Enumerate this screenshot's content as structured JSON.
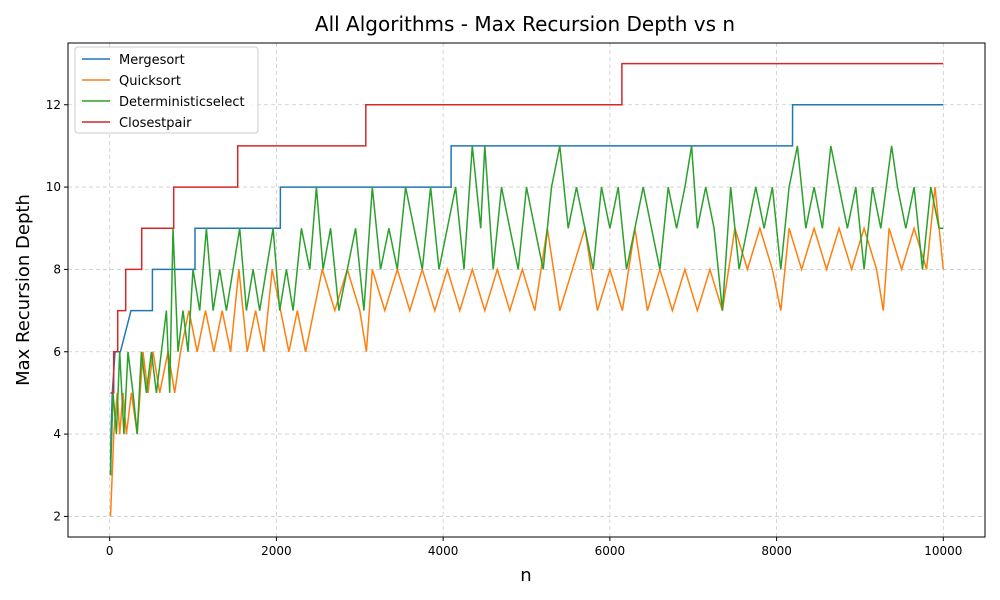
{
  "chart_data": {
    "type": "line",
    "title": "All Algorithms - Max Recursion Depth vs n",
    "xlabel": "n",
    "ylabel": "Max Recursion Depth",
    "xlim": [
      -500,
      10500
    ],
    "ylim": [
      1.5,
      13.5
    ],
    "xticks": [
      0,
      2000,
      4000,
      6000,
      8000,
      10000
    ],
    "yticks": [
      2,
      4,
      6,
      8,
      10,
      12
    ],
    "grid": true,
    "legend_position": "top-left",
    "series": [
      {
        "name": "Mergesort",
        "color": "#1f77b4",
        "points": [
          [
            10,
            3
          ],
          [
            16,
            4
          ],
          [
            32,
            5
          ],
          [
            64,
            6
          ],
          [
            128,
            6
          ],
          [
            256,
            7
          ],
          [
            512,
            7
          ],
          [
            513,
            8
          ],
          [
            1023,
            8
          ],
          [
            1024,
            9
          ],
          [
            2047,
            9
          ],
          [
            2048,
            10
          ],
          [
            4095,
            10
          ],
          [
            4096,
            11
          ],
          [
            8191,
            11
          ],
          [
            8192,
            12
          ],
          [
            10000,
            12
          ]
        ]
      },
      {
        "name": "Quicksort",
        "color": "#ff7f0e",
        "points": [
          [
            10,
            2
          ],
          [
            30,
            3
          ],
          [
            50,
            4
          ],
          [
            90,
            5
          ],
          [
            120,
            4
          ],
          [
            160,
            5
          ],
          [
            200,
            4
          ],
          [
            260,
            5
          ],
          [
            330,
            4
          ],
          [
            400,
            6
          ],
          [
            460,
            5
          ],
          [
            520,
            6
          ],
          [
            600,
            5
          ],
          [
            700,
            6
          ],
          [
            780,
            5
          ],
          [
            850,
            6
          ],
          [
            950,
            7
          ],
          [
            1050,
            6
          ],
          [
            1150,
            7
          ],
          [
            1250,
            6
          ],
          [
            1350,
            7
          ],
          [
            1450,
            6
          ],
          [
            1550,
            8
          ],
          [
            1650,
            6
          ],
          [
            1750,
            7
          ],
          [
            1850,
            6
          ],
          [
            1950,
            8
          ],
          [
            2050,
            7
          ],
          [
            2150,
            6
          ],
          [
            2250,
            7
          ],
          [
            2350,
            6
          ],
          [
            2450,
            7
          ],
          [
            2550,
            8
          ],
          [
            2700,
            7
          ],
          [
            2850,
            8
          ],
          [
            3000,
            7
          ],
          [
            3080,
            6
          ],
          [
            3150,
            8
          ],
          [
            3300,
            7
          ],
          [
            3450,
            8
          ],
          [
            3600,
            7
          ],
          [
            3750,
            8
          ],
          [
            3900,
            7
          ],
          [
            4050,
            8
          ],
          [
            4200,
            7
          ],
          [
            4350,
            8
          ],
          [
            4500,
            7
          ],
          [
            4650,
            8
          ],
          [
            4800,
            7
          ],
          [
            4950,
            8
          ],
          [
            5100,
            7
          ],
          [
            5250,
            9
          ],
          [
            5400,
            7
          ],
          [
            5550,
            8
          ],
          [
            5700,
            9
          ],
          [
            5850,
            7
          ],
          [
            6000,
            8
          ],
          [
            6150,
            7
          ],
          [
            6300,
            9
          ],
          [
            6450,
            7
          ],
          [
            6600,
            8
          ],
          [
            6750,
            7
          ],
          [
            6900,
            8
          ],
          [
            7050,
            7
          ],
          [
            7200,
            8
          ],
          [
            7350,
            7
          ],
          [
            7500,
            9
          ],
          [
            7650,
            8
          ],
          [
            7800,
            9
          ],
          [
            7950,
            8
          ],
          [
            8050,
            7
          ],
          [
            8150,
            9
          ],
          [
            8300,
            8
          ],
          [
            8450,
            9
          ],
          [
            8600,
            8
          ],
          [
            8750,
            9
          ],
          [
            8900,
            8
          ],
          [
            9050,
            9
          ],
          [
            9200,
            8
          ],
          [
            9280,
            7
          ],
          [
            9350,
            9
          ],
          [
            9500,
            8
          ],
          [
            9650,
            9
          ],
          [
            9800,
            8
          ],
          [
            9900,
            10
          ],
          [
            10000,
            8
          ]
        ]
      },
      {
        "name": "Deterministicselect",
        "color": "#2ca02c",
        "points": [
          [
            10,
            3
          ],
          [
            40,
            5
          ],
          [
            80,
            4
          ],
          [
            120,
            6
          ],
          [
            170,
            4
          ],
          [
            220,
            6
          ],
          [
            280,
            5
          ],
          [
            330,
            4
          ],
          [
            380,
            6
          ],
          [
            440,
            5
          ],
          [
            500,
            6
          ],
          [
            560,
            5
          ],
          [
            620,
            6
          ],
          [
            680,
            7
          ],
          [
            720,
            5
          ],
          [
            760,
            9
          ],
          [
            820,
            6
          ],
          [
            880,
            7
          ],
          [
            940,
            6
          ],
          [
            1000,
            8
          ],
          [
            1080,
            7
          ],
          [
            1160,
            9
          ],
          [
            1240,
            7
          ],
          [
            1320,
            8
          ],
          [
            1400,
            7
          ],
          [
            1480,
            8
          ],
          [
            1560,
            9
          ],
          [
            1640,
            7
          ],
          [
            1720,
            8
          ],
          [
            1800,
            7
          ],
          [
            1880,
            8
          ],
          [
            1960,
            9
          ],
          [
            2040,
            7
          ],
          [
            2120,
            8
          ],
          [
            2200,
            7
          ],
          [
            2300,
            9
          ],
          [
            2400,
            8
          ],
          [
            2480,
            10
          ],
          [
            2560,
            8
          ],
          [
            2650,
            9
          ],
          [
            2750,
            7
          ],
          [
            2850,
            8
          ],
          [
            2950,
            9
          ],
          [
            3050,
            7
          ],
          [
            3150,
            10
          ],
          [
            3250,
            8
          ],
          [
            3350,
            9
          ],
          [
            3450,
            8
          ],
          [
            3550,
            10
          ],
          [
            3650,
            9
          ],
          [
            3750,
            8
          ],
          [
            3850,
            10
          ],
          [
            3950,
            8
          ],
          [
            4050,
            9
          ],
          [
            4150,
            10
          ],
          [
            4250,
            8
          ],
          [
            4350,
            11
          ],
          [
            4450,
            9
          ],
          [
            4500,
            11
          ],
          [
            4600,
            8
          ],
          [
            4700,
            10
          ],
          [
            4800,
            9
          ],
          [
            4900,
            8
          ],
          [
            5000,
            10
          ],
          [
            5100,
            9
          ],
          [
            5200,
            8
          ],
          [
            5300,
            10
          ],
          [
            5400,
            11
          ],
          [
            5500,
            9
          ],
          [
            5600,
            10
          ],
          [
            5700,
            9
          ],
          [
            5800,
            8
          ],
          [
            5900,
            10
          ],
          [
            6000,
            9
          ],
          [
            6100,
            10
          ],
          [
            6200,
            8
          ],
          [
            6300,
            9
          ],
          [
            6400,
            10
          ],
          [
            6500,
            9
          ],
          [
            6600,
            8
          ],
          [
            6700,
            10
          ],
          [
            6800,
            9
          ],
          [
            6900,
            10
          ],
          [
            6980,
            11
          ],
          [
            7050,
            9
          ],
          [
            7150,
            10
          ],
          [
            7250,
            9
          ],
          [
            7350,
            7
          ],
          [
            7450,
            10
          ],
          [
            7550,
            8
          ],
          [
            7650,
            9
          ],
          [
            7750,
            10
          ],
          [
            7850,
            9
          ],
          [
            7950,
            10
          ],
          [
            8050,
            8
          ],
          [
            8150,
            10
          ],
          [
            8250,
            11
          ],
          [
            8350,
            9
          ],
          [
            8450,
            10
          ],
          [
            8550,
            9
          ],
          [
            8650,
            11
          ],
          [
            8750,
            10
          ],
          [
            8850,
            9
          ],
          [
            8950,
            10
          ],
          [
            9050,
            8
          ],
          [
            9150,
            10
          ],
          [
            9250,
            9
          ],
          [
            9380,
            11
          ],
          [
            9450,
            10
          ],
          [
            9550,
            9
          ],
          [
            9650,
            10
          ],
          [
            9750,
            8
          ],
          [
            9850,
            10
          ],
          [
            9950,
            9
          ],
          [
            10000,
            9
          ]
        ]
      },
      {
        "name": "Closestpair",
        "color": "#d62728",
        "points": [
          [
            10,
            5
          ],
          [
            48,
            5
          ],
          [
            48,
            6
          ],
          [
            96,
            6
          ],
          [
            96,
            7
          ],
          [
            192,
            7
          ],
          [
            192,
            8
          ],
          [
            384,
            8
          ],
          [
            384,
            9
          ],
          [
            768,
            9
          ],
          [
            768,
            10
          ],
          [
            1536,
            10
          ],
          [
            1536,
            11
          ],
          [
            3072,
            11
          ],
          [
            3072,
            12
          ],
          [
            6144,
            12
          ],
          [
            6144,
            13
          ],
          [
            10000,
            13
          ]
        ]
      }
    ]
  }
}
